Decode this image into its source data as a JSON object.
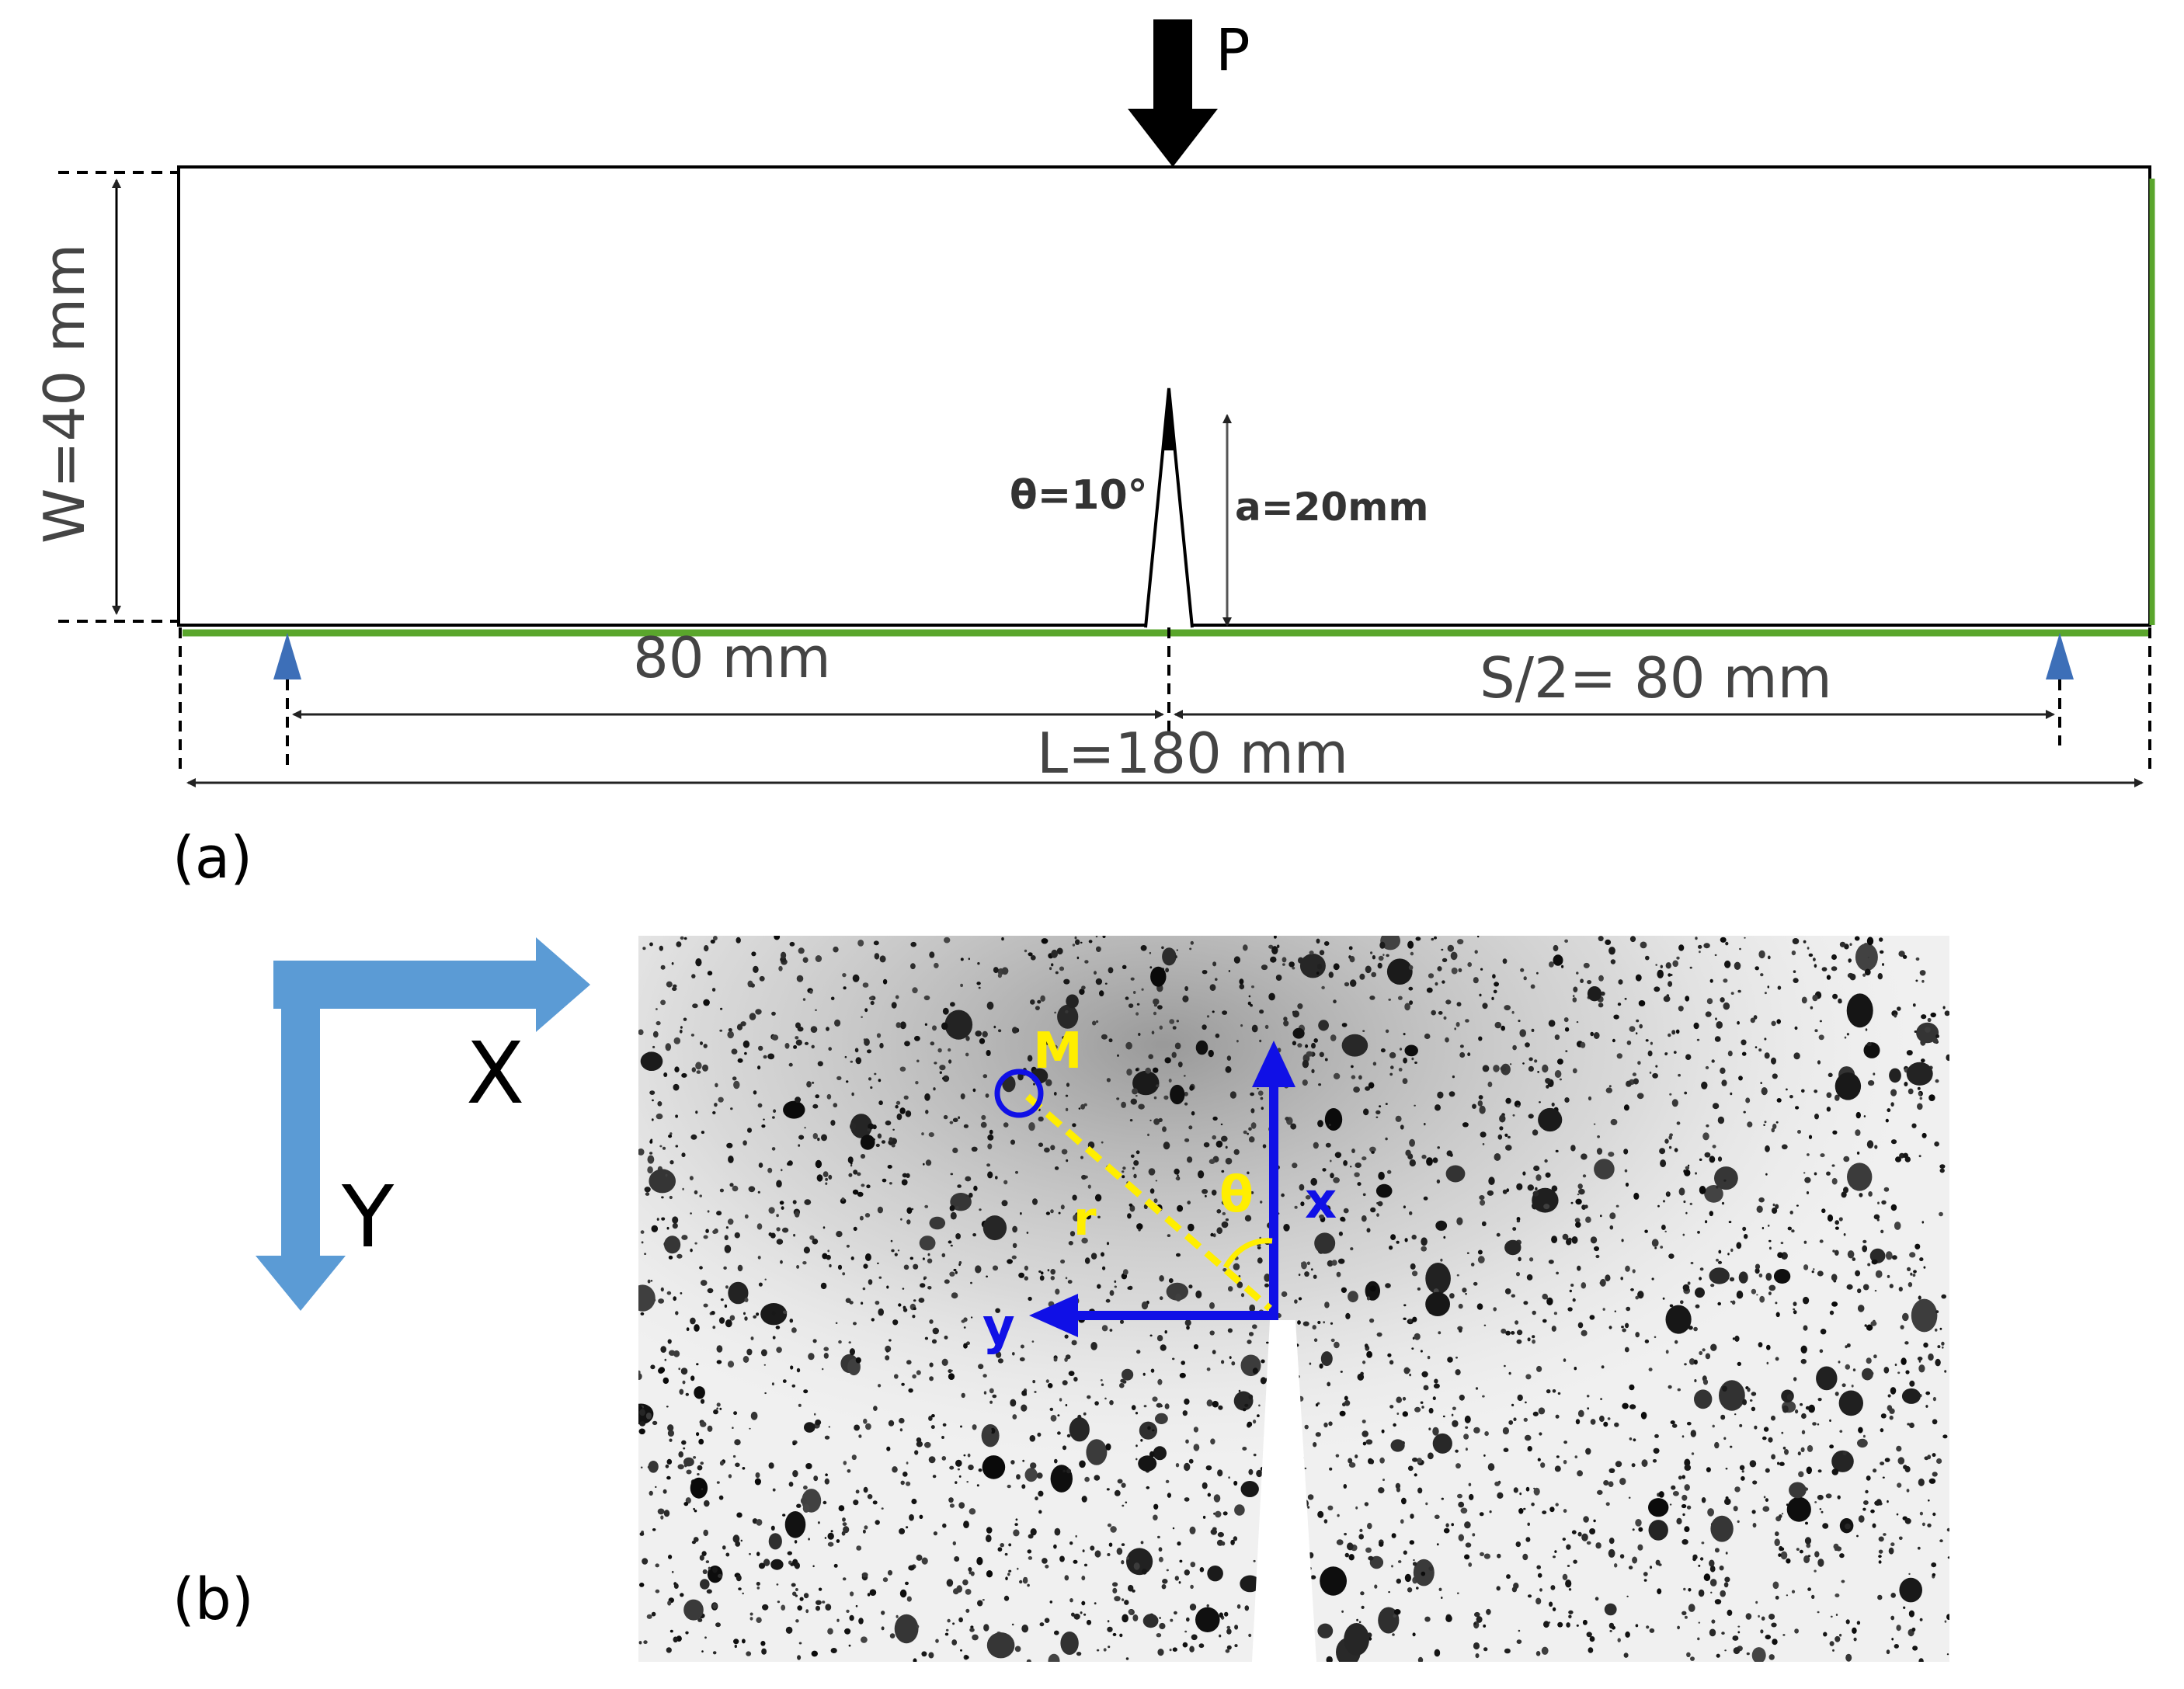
{
  "panel_a": {
    "panel_label": "(a)",
    "load_label": "P",
    "width_label": "W=40 mm",
    "notch_angle_label": "θ=10°",
    "crack_length_label": "a=20mm",
    "left_span_label": "80 mm",
    "half_span_label": "S/2= 80 mm",
    "length_label": "L=180 mm",
    "colors": {
      "outline": "#000000",
      "support": "#3d6fb8",
      "bottom_edge": "#5aa62c",
      "dimension": "#444444"
    }
  },
  "panel_b": {
    "panel_label": "(b)",
    "global_x_label": "X",
    "global_y_label": "Y",
    "point_label": "M",
    "radius_label": "r",
    "angle_label": "θ",
    "local_x_label": "x",
    "local_y_label": "y",
    "colors": {
      "global_axes": "#5b9bd5",
      "local_axes": "#1010e6",
      "polar_annotation": "#ffee00",
      "speckle_base": "#f0f0f0"
    }
  }
}
